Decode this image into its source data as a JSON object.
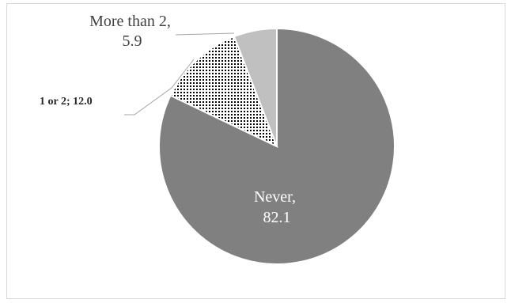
{
  "chart_data": {
    "type": "pie",
    "title": "",
    "slices": [
      {
        "label": "Never",
        "value": 82.1,
        "color": "#808080",
        "pattern": "solid",
        "label_lines": [
          "Never,",
          "82.1"
        ]
      },
      {
        "label": "1 or 2",
        "value": 12.0,
        "color": "#ffffff",
        "pattern": "dotted",
        "label_lines": [
          "1 or 2; 12.0"
        ]
      },
      {
        "label": "More than 2",
        "value": 5.9,
        "color": "#c0c0c0",
        "pattern": "solid",
        "label_lines": [
          "More than 2,",
          "5.9"
        ]
      }
    ],
    "start_angle": "12 o'clock",
    "direction": "clockwise",
    "legend": "none",
    "background": "#ffffff"
  }
}
